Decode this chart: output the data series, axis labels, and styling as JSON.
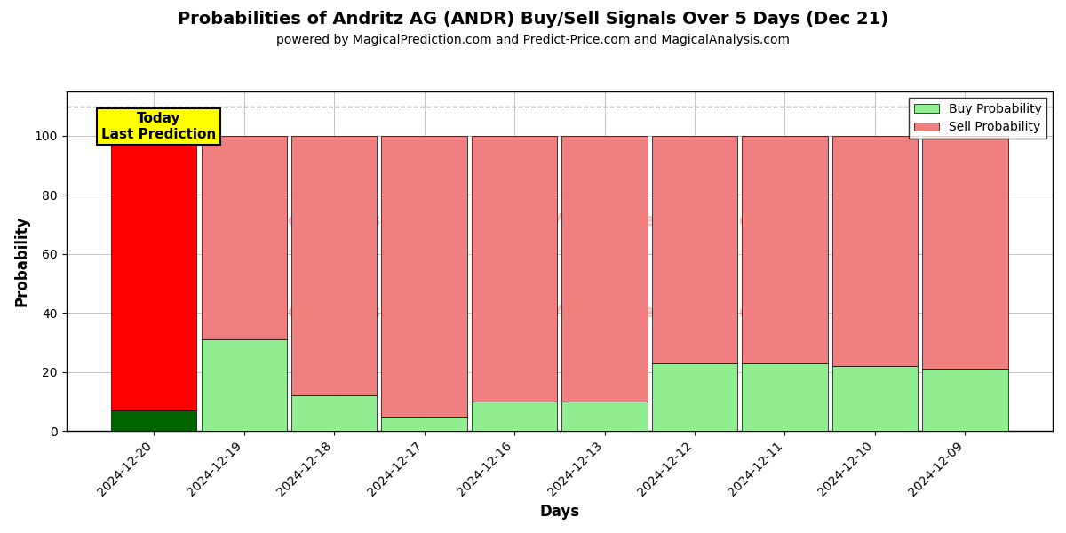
{
  "title": "Probabilities of Andritz AG (ANDR) Buy/Sell Signals Over 5 Days (Dec 21)",
  "subtitle": "powered by MagicalPrediction.com and Predict-Price.com and MagicalAnalysis.com",
  "xlabel": "Days",
  "ylabel": "Probability",
  "dates": [
    "2024-12-20",
    "2024-12-19",
    "2024-12-18",
    "2024-12-17",
    "2024-12-16",
    "2024-12-13",
    "2024-12-12",
    "2024-12-11",
    "2024-12-10",
    "2024-12-09"
  ],
  "buy_probs": [
    7,
    31,
    12,
    5,
    10,
    10,
    23,
    23,
    22,
    21
  ],
  "sell_probs": [
    93,
    69,
    88,
    95,
    90,
    90,
    77,
    77,
    78,
    79
  ],
  "today_label": "Today\nLast Prediction",
  "dashed_line_y": 110,
  "ylim": [
    0,
    115
  ],
  "yticks": [
    0,
    20,
    40,
    60,
    80,
    100
  ],
  "bar_width": 0.95,
  "buy_color_today": "#006400",
  "buy_color_light": "#90EE90",
  "sell_color_today": "#FF0000",
  "sell_color_light": "#F08080",
  "today_box_color": "#FFFF00",
  "today_box_edgecolor": "#000000",
  "legend_buy_color": "#90EE90",
  "legend_sell_color": "#F08080",
  "background_color": "#ffffff",
  "grid_color": "#aaaaaa"
}
